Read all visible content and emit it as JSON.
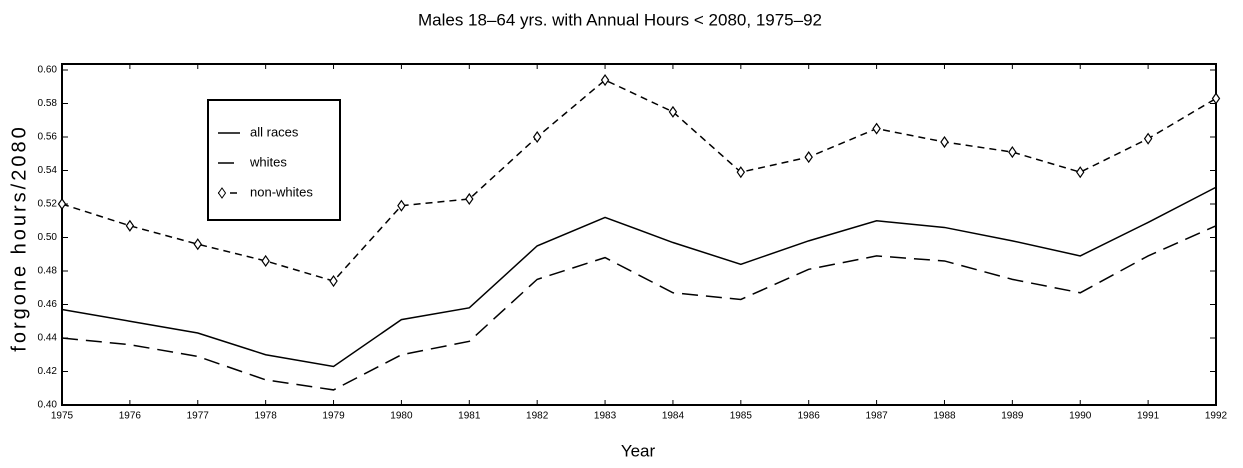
{
  "chart_data": {
    "type": "line",
    "title": "Males 18–64 yrs. with Annual Hours < 2080, 1975–92",
    "x_label": "Year",
    "y_label": "forgone hours/2080",
    "x": [
      1975,
      1976,
      1977,
      1978,
      1979,
      1980,
      1981,
      1982,
      1983,
      1984,
      1985,
      1986,
      1987,
      1988,
      1989,
      1990,
      1991,
      1992
    ],
    "xlim": [
      1975,
      1992
    ],
    "xticks": [
      1975,
      1976,
      1977,
      1978,
      1979,
      1980,
      1981,
      1982,
      1983,
      1984,
      1985,
      1986,
      1987,
      1988,
      1989,
      1990,
      1991,
      1992
    ],
    "ylim": [
      0.4,
      0.6
    ],
    "yticks": [
      {
        "value": 0.4,
        "label": "0.40"
      },
      0.42,
      0.44,
      0.46,
      0.48,
      {
        "value": 0.5,
        "label": "0.50"
      },
      0.52,
      0.54,
      0.56,
      0.58,
      {
        "value": 0.6,
        "label": "0.60"
      }
    ],
    "grid": false,
    "series": [
      {
        "name": "all races",
        "color": "#000000",
        "dash": "solid",
        "values": [
          0.457,
          0.45,
          0.443,
          0.43,
          0.423,
          0.451,
          0.458,
          0.495,
          0.512,
          0.497,
          0.484,
          0.498,
          0.51,
          0.506,
          0.498,
          0.489,
          0.509,
          0.53
        ]
      },
      {
        "name": "whites",
        "color": "#000000",
        "dash": "long",
        "values": [
          0.44,
          0.436,
          0.429,
          0.415,
          0.409,
          0.43,
          0.438,
          0.475,
          0.488,
          0.467,
          0.463,
          0.481,
          0.489,
          0.486,
          0.475,
          0.467,
          0.489,
          0.507
        ]
      },
      {
        "name": "non-whites",
        "color": "#000000",
        "dash": "short",
        "marker": "diamond",
        "values": [
          0.52,
          0.507,
          0.496,
          0.486,
          0.474,
          0.519,
          0.523,
          0.56,
          0.594,
          0.575,
          0.539,
          0.548,
          0.565,
          0.557,
          0.551,
          0.539,
          0.559,
          0.583
        ]
      }
    ]
  }
}
